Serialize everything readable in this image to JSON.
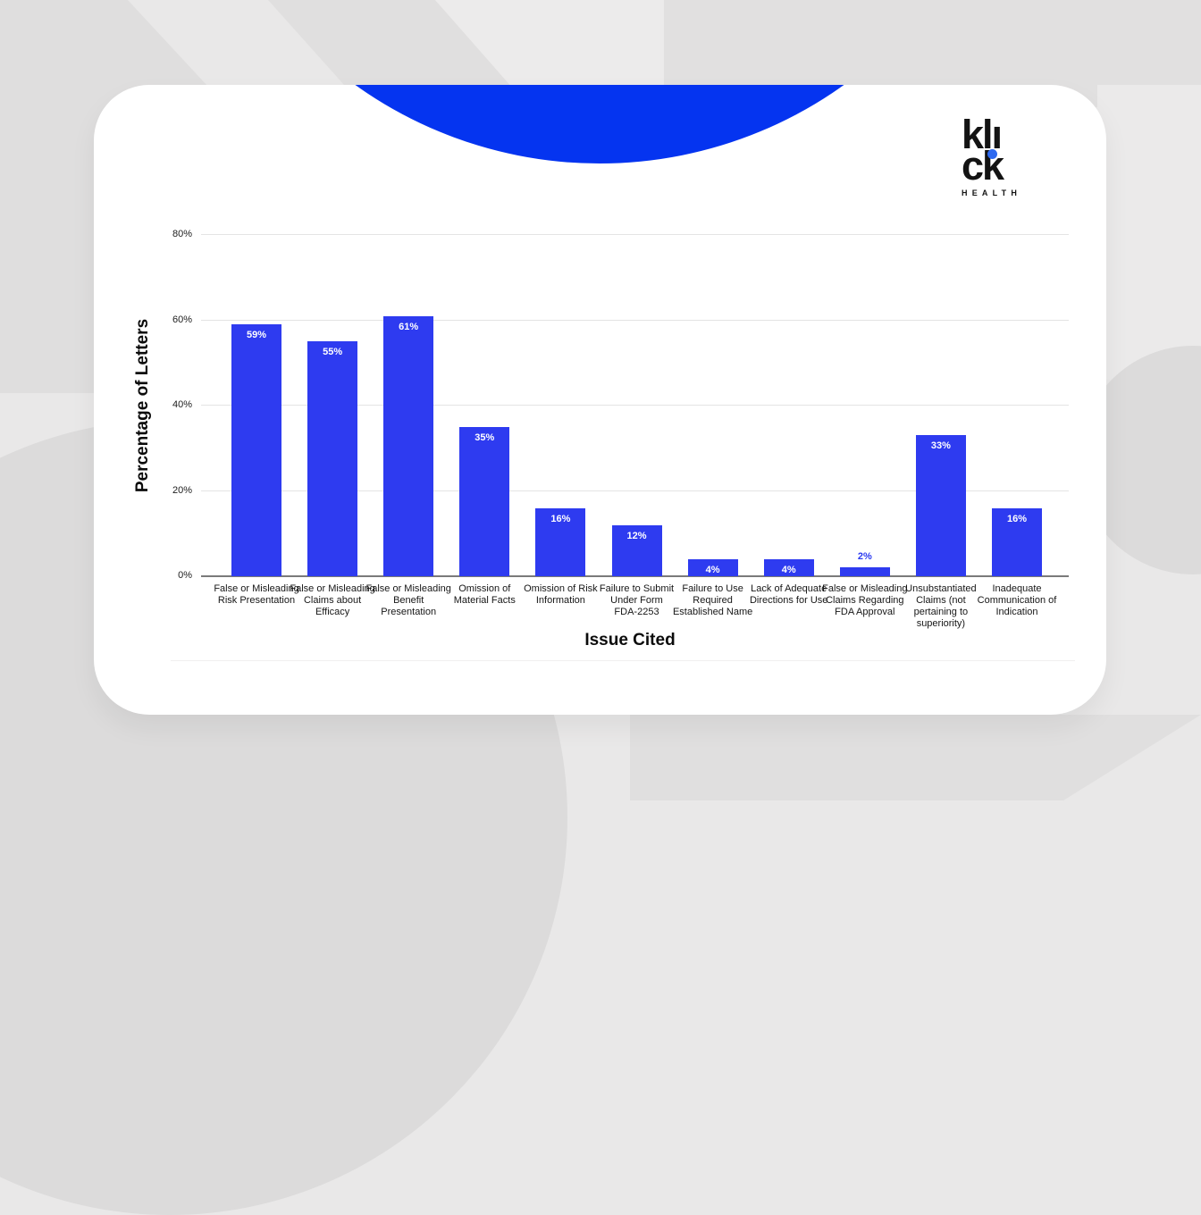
{
  "brand": {
    "logo_line1": "klı",
    "logo_line2": "ck",
    "logo_subtext": "HEALTH",
    "logo_text_color": "#131313",
    "logo_dot_color": "#2e6af0"
  },
  "colors": {
    "page_background": "#e9e8e8",
    "card_background": "#ffffff",
    "accent_circle_blue": "#0534f0",
    "bar_blue": "#2e3bf0",
    "value_label_inside": "#ffffff",
    "value_label_outside": "#2b3af0",
    "gridline": "#e4e4e4",
    "axis_line": "#7a7a7a"
  },
  "chart_data": {
    "type": "bar",
    "title": "",
    "xlabel": "Issue Cited",
    "ylabel": "Percentage of Letters",
    "categories": [
      "False or Misleading Risk Presentation",
      "False or Misleading Claims about Efficacy",
      "False or Misleading Benefit Presentation",
      "Omission of Material Facts",
      "Omission of Risk Information",
      "Failure to Submit Under Form FDA-2253",
      "Failure to Use Required Established Name",
      "Lack of Adequate Directions for Use",
      "False or Misleading Claims Regarding FDA Approval",
      "Unsubstantiated Claims (not pertaining to superiority)",
      "Inadequate Communication of Indication"
    ],
    "category_lines": [
      [
        "False or Misleading",
        "Risk Presentation"
      ],
      [
        "False or Misleading",
        "Claims about",
        "Efficacy"
      ],
      [
        "False or Misleading",
        "Benefit",
        "Presentation"
      ],
      [
        "Omission of",
        "Material Facts"
      ],
      [
        "Omission of Risk",
        "Information"
      ],
      [
        "Failure to Submit",
        "Under Form",
        "FDA-2253"
      ],
      [
        "Failure to Use",
        "Required",
        "Established Name"
      ],
      [
        "Lack of Adequate",
        "Directions for Use"
      ],
      [
        "False or Misleading",
        "Claims Regarding",
        "FDA Approval"
      ],
      [
        "Unsubstantiated",
        "Claims (not",
        "pertaining to",
        "superiority)"
      ],
      [
        "Inadequate",
        "Communication of",
        "Indication"
      ]
    ],
    "values": [
      59,
      55,
      61,
      35,
      16,
      12,
      4,
      4,
      2,
      33,
      16
    ],
    "value_labels": [
      "59%",
      "55%",
      "61%",
      "35%",
      "16%",
      "12%",
      "4%",
      "4%",
      "2%",
      "33%",
      "16%"
    ],
    "ylim": [
      0,
      80
    ],
    "yticks": [
      {
        "value": 0,
        "label": "0%"
      },
      {
        "value": 20,
        "label": "20%"
      },
      {
        "value": 40,
        "label": "40%"
      },
      {
        "value": 60,
        "label": "60%"
      },
      {
        "value": 80,
        "label": "80%"
      }
    ],
    "grid": true,
    "legend": false
  }
}
